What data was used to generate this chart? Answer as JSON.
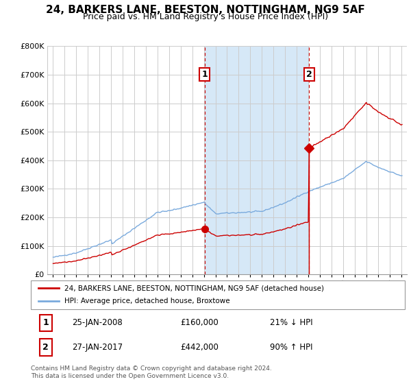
{
  "title": "24, BARKERS LANE, BEESTON, NOTTINGHAM, NG9 5AF",
  "subtitle": "Price paid vs. HM Land Registry's House Price Index (HPI)",
  "legend_label_red": "24, BARKERS LANE, BEESTON, NOTTINGHAM, NG9 5AF (detached house)",
  "legend_label_blue": "HPI: Average price, detached house, Broxtowe",
  "annotation1_label": "1",
  "annotation1_date": "25-JAN-2008",
  "annotation1_price": "£160,000",
  "annotation1_hpi": "21% ↓ HPI",
  "annotation1_year": 2008.08,
  "annotation1_value": 160000,
  "annotation2_label": "2",
  "annotation2_date": "27-JAN-2017",
  "annotation2_price": "£442,000",
  "annotation2_hpi": "90% ↑ HPI",
  "annotation2_year": 2017.08,
  "annotation2_value": 442000,
  "footer": "Contains HM Land Registry data © Crown copyright and database right 2024.\nThis data is licensed under the Open Government Licence v3.0.",
  "ylim": [
    0,
    800000
  ],
  "yticks": [
    0,
    100000,
    200000,
    300000,
    400000,
    500000,
    600000,
    700000,
    800000
  ],
  "background_color": "#ffffff",
  "hpi_color": "#7aaadd",
  "hpi_fill_color": "#d6e8f7",
  "price_color": "#cc0000",
  "vline_color": "#cc0000",
  "grid_color": "#cccccc",
  "shade_color": "#ddeeff"
}
